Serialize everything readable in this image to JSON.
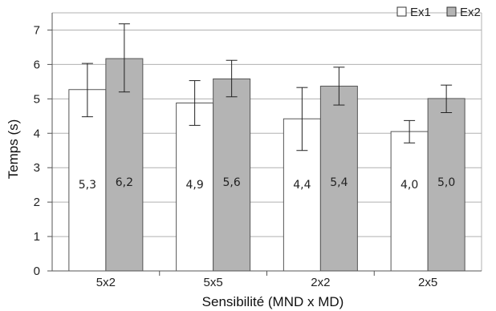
{
  "chart_data": {
    "type": "bar",
    "title": "",
    "xlabel": "Sensibilité (MND x MD)",
    "ylabel": "Temps (s)",
    "categories": [
      "5x2",
      "5x5",
      "2x2",
      "2x5"
    ],
    "ylim": [
      0,
      7.5
    ],
    "yticks": [
      "0",
      "1",
      "2",
      "3",
      "4",
      "5",
      "6",
      "7"
    ],
    "grid": "horizontal",
    "legend_position": "top-right",
    "series": [
      {
        "name": "Ex1",
        "color": "#ffffff",
        "values": [
          5.27,
          4.88,
          4.42,
          4.05
        ],
        "labels": [
          "5,3",
          "4,9",
          "4,4",
          "4,0"
        ],
        "error_low": [
          4.48,
          4.23,
          3.5,
          3.72
        ],
        "error_high": [
          6.03,
          5.53,
          5.33,
          4.37
        ]
      },
      {
        "name": "Ex2",
        "color": "#b4b4b4",
        "values": [
          6.17,
          5.58,
          5.37,
          5.01
        ],
        "labels": [
          "6,2",
          "5,6",
          "5,4",
          "5,0"
        ],
        "error_low": [
          5.2,
          5.06,
          4.82,
          4.6
        ],
        "error_high": [
          7.18,
          6.12,
          5.92,
          5.4
        ]
      }
    ]
  }
}
